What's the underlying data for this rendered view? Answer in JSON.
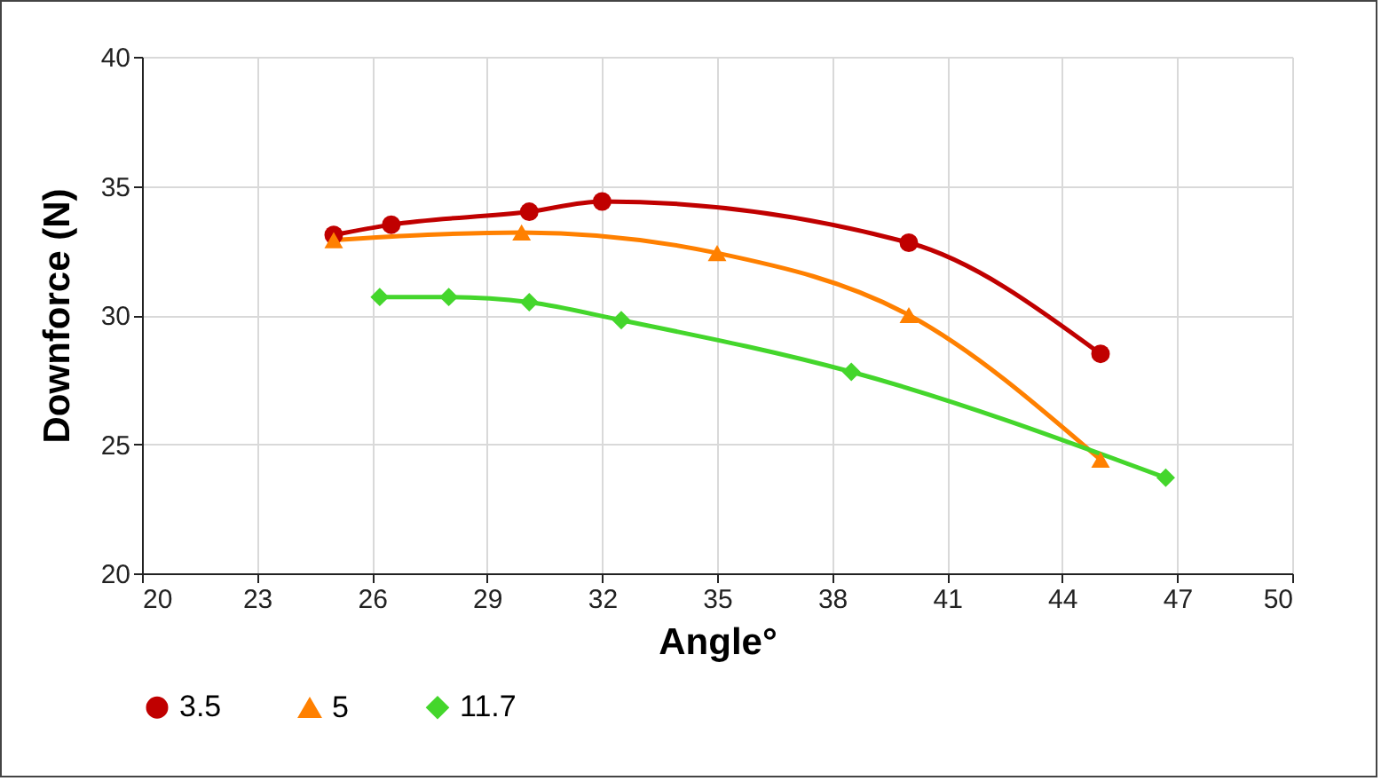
{
  "chart_data": {
    "type": "line",
    "xlabel": "Angle°",
    "ylabel": "Downforce (N)",
    "xlim": [
      20,
      50
    ],
    "xticks": [
      20,
      23,
      26,
      29,
      32,
      35,
      38,
      41,
      44,
      47,
      50
    ],
    "ylim": [
      20,
      40
    ],
    "yticks": [
      20,
      25,
      30,
      35,
      40
    ],
    "grid": true,
    "legend": "bottom",
    "line_style": "solid",
    "series": [
      {
        "name": "3.5",
        "color": "#c00000",
        "marker": "circle",
        "x": [
          25,
          26.5,
          30.1,
          32,
          40,
          45
        ],
        "values": [
          33.1,
          33.5,
          34.0,
          34.4,
          32.8,
          28.5
        ]
      },
      {
        "name": "5",
        "color": "#ff8000",
        "marker": "triangle",
        "x": [
          25,
          29.9,
          35,
          40,
          45
        ],
        "values": [
          32.9,
          33.2,
          32.4,
          30.0,
          24.4
        ]
      },
      {
        "name": "11.7",
        "color": "#44d62c",
        "marker": "diamond",
        "x": [
          26.2,
          28,
          30.1,
          32.5,
          38.5,
          46.7
        ],
        "values": [
          30.7,
          30.7,
          30.5,
          29.8,
          27.8,
          23.7
        ]
      }
    ]
  }
}
